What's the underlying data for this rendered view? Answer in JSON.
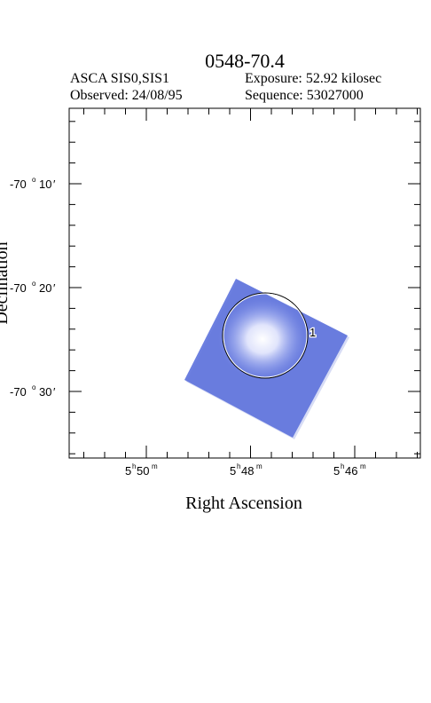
{
  "header": {
    "title": "0548-70.4",
    "instrument": "ASCA SIS0,SIS1",
    "exposure": "Exposure: 52.92 kilosec",
    "observed": "Observed: 24/08/95",
    "sequence": "Sequence: 53027000"
  },
  "axes": {
    "xlabel": "Right Ascension",
    "ylabel": "Declination",
    "x_ticks": [
      {
        "h": "5",
        "m": "50"
      },
      {
        "h": "5",
        "m": "48"
      },
      {
        "h": "5",
        "m": "46"
      }
    ],
    "y_ticks": [
      {
        "deg": "-70",
        "min": "10"
      },
      {
        "deg": "-70",
        "min": "20"
      },
      {
        "deg": "-70",
        "min": "30"
      }
    ]
  },
  "sources": [
    {
      "id": "1",
      "label": "1"
    }
  ],
  "colors": {
    "field": "#6c7fe0",
    "source_core": "#ffffff",
    "frame": "#000000"
  }
}
